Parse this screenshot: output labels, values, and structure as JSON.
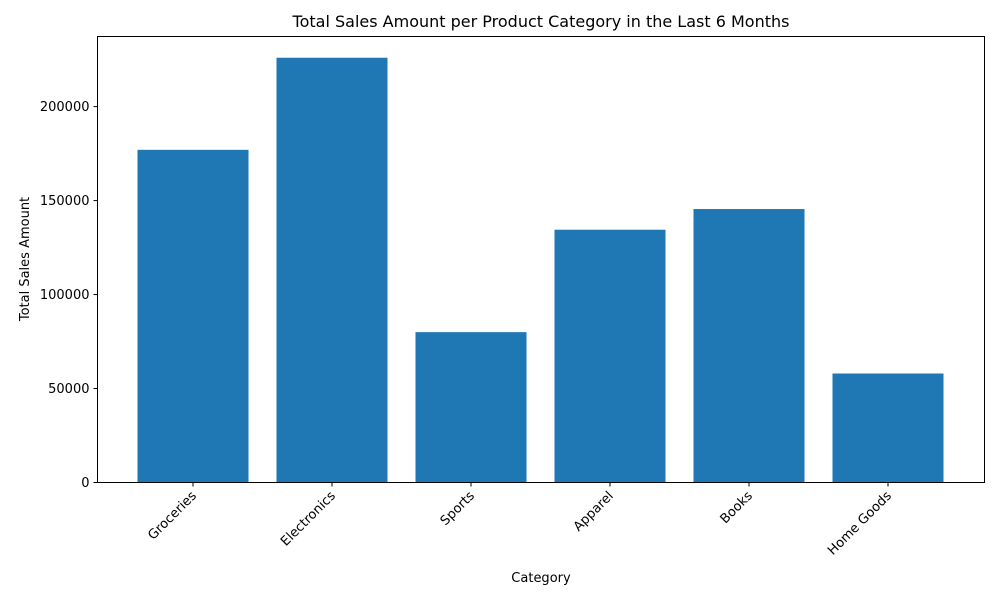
{
  "chart_data": {
    "type": "bar",
    "title": "Total Sales Amount per Product Category in the Last 6 Months",
    "xlabel": "Category",
    "ylabel": "Total Sales Amount",
    "categories": [
      "Groceries",
      "Electronics",
      "Sports",
      "Apparel",
      "Books",
      "Home Goods"
    ],
    "values": [
      177000,
      226000,
      80000,
      134500,
      145500,
      58000
    ],
    "ylim": [
      0,
      237300
    ],
    "yticks": [
      "0",
      "50000",
      "100000",
      "150000",
      "200000"
    ],
    "bar_color": "#1f77b4",
    "grid": false,
    "legend": "none"
  }
}
